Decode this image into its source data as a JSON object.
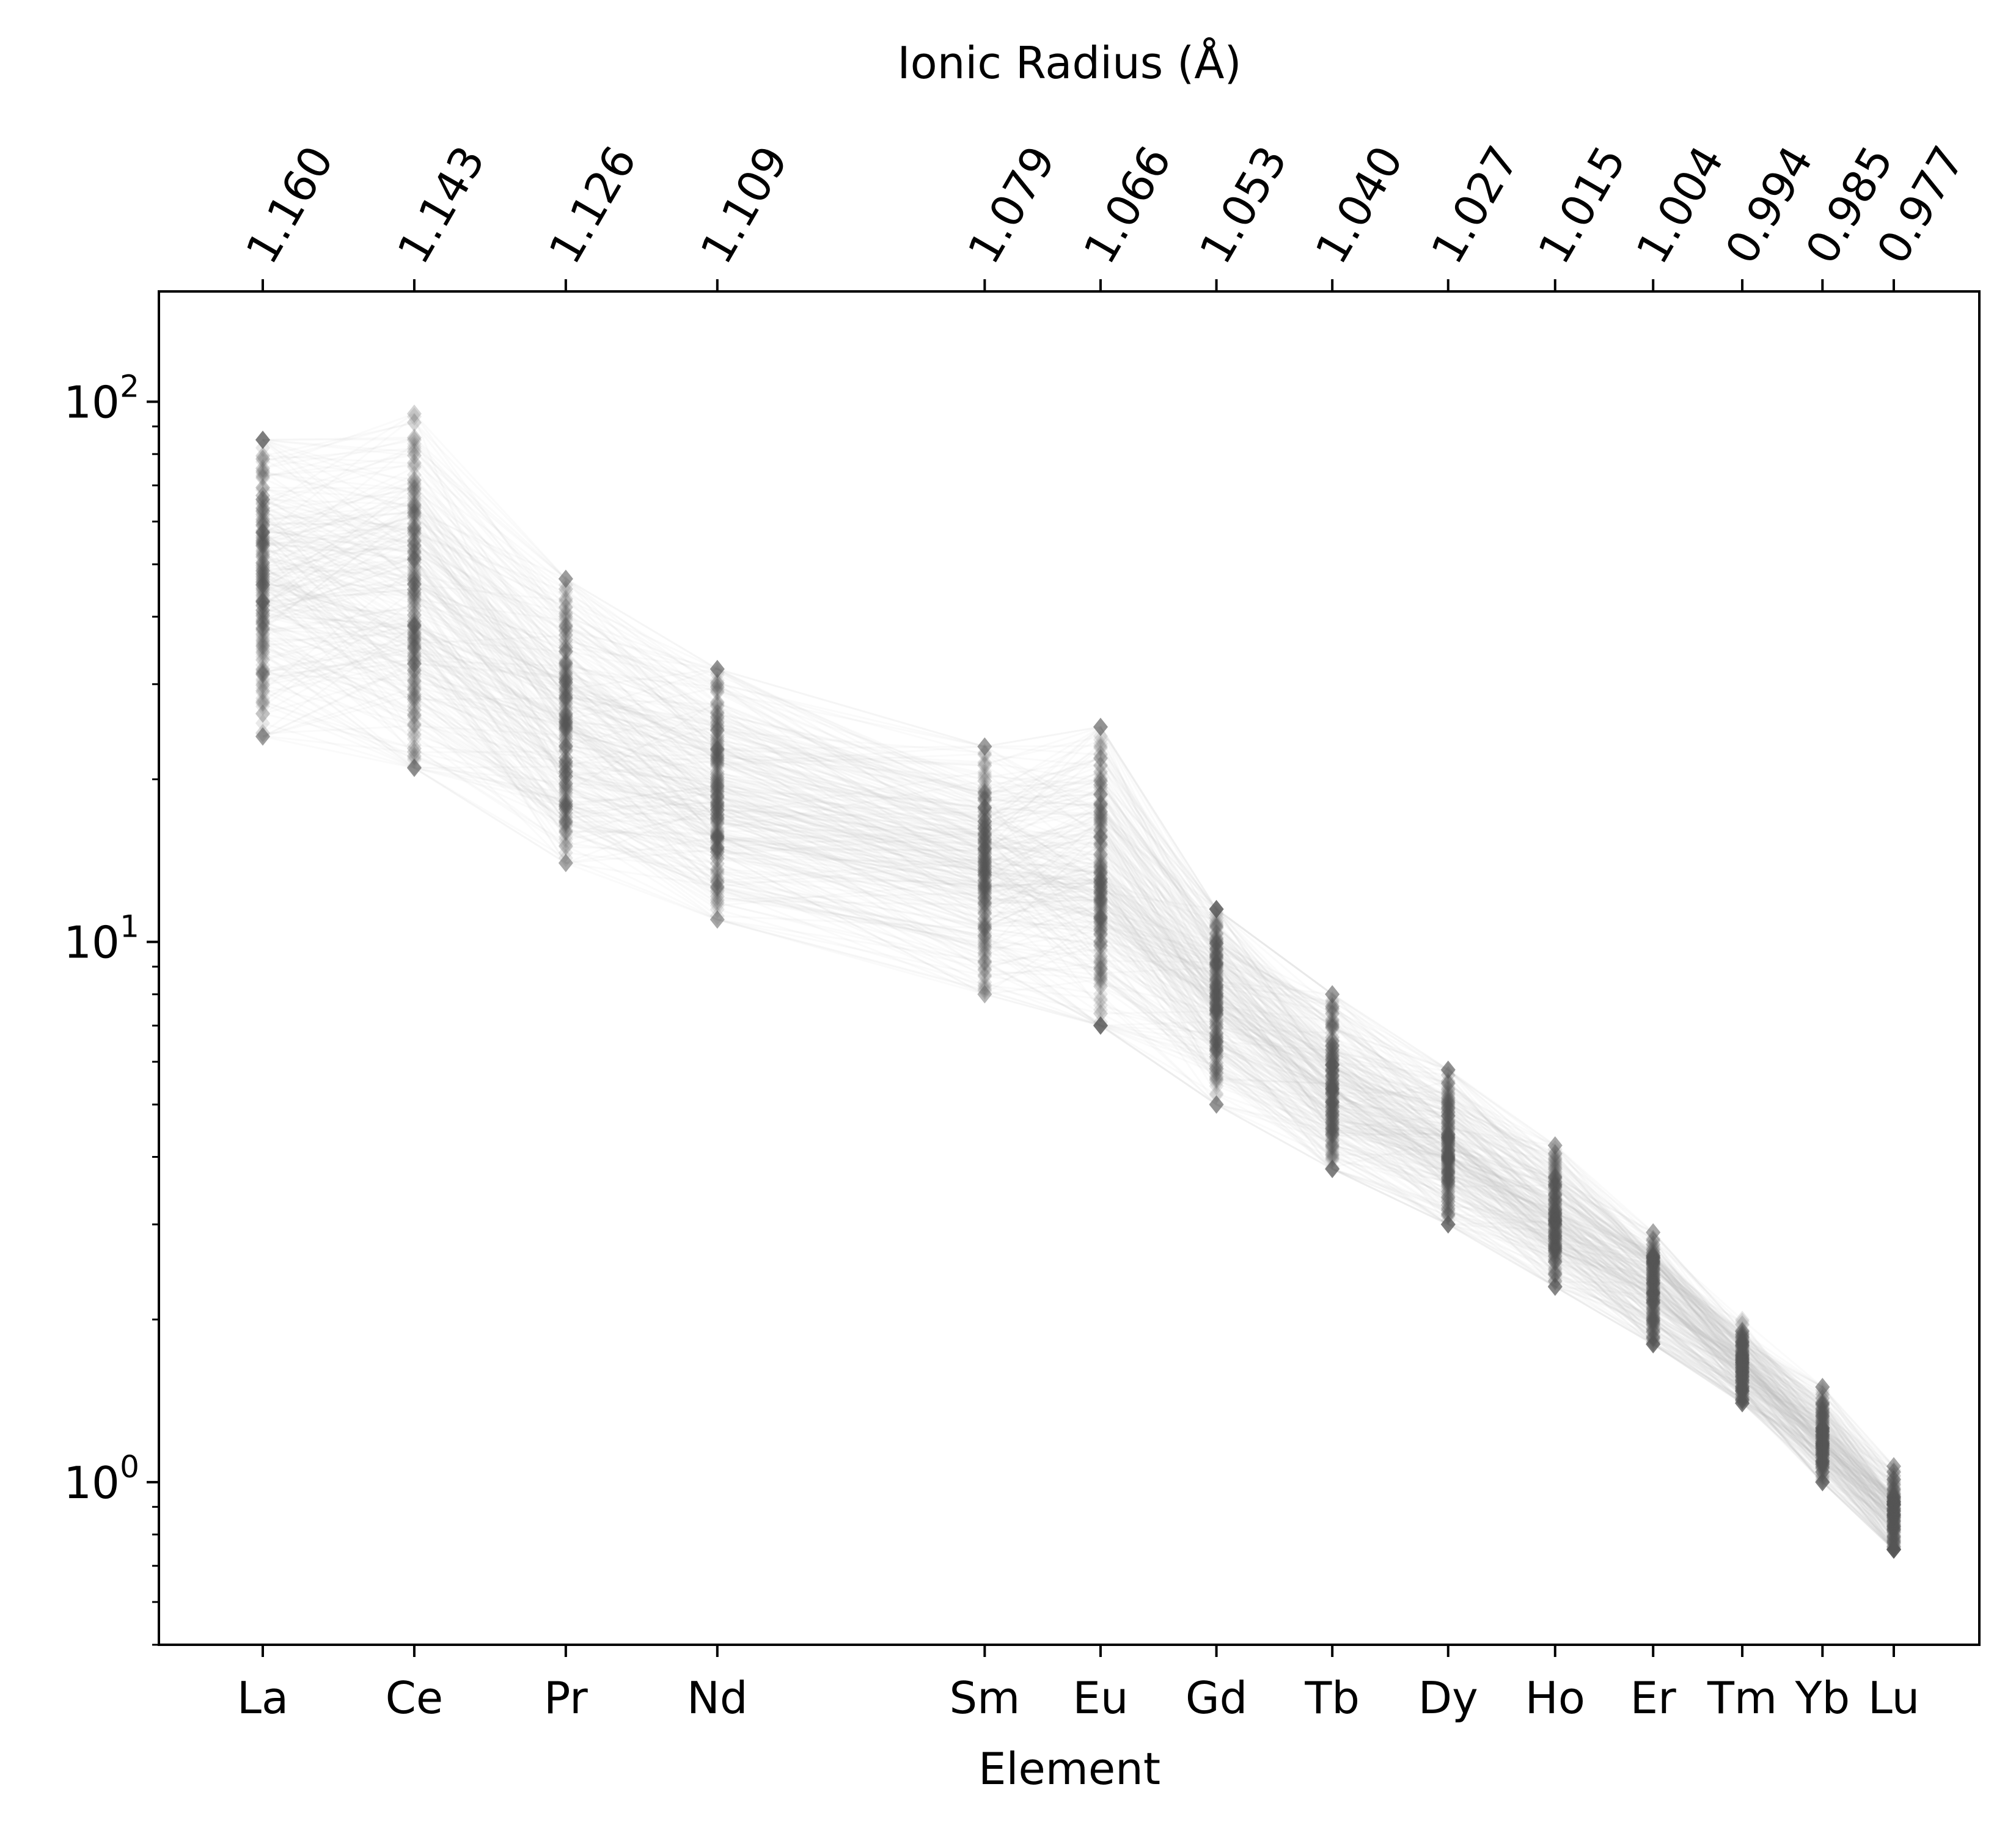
{
  "chart_data": {
    "type": "line",
    "title": "",
    "xlabel": "Element",
    "ylabel": "",
    "top_xlabel": "Ionic Radius (Å)",
    "yscale": "log",
    "ylim": [
      0.5,
      160
    ],
    "categories": [
      "La",
      "Ce",
      "Pr",
      "Nd",
      "Sm",
      "Eu",
      "Gd",
      "Tb",
      "Dy",
      "Ho",
      "Er",
      "Tm",
      "Yb",
      "Lu"
    ],
    "ionic_radius": [
      1.16,
      1.143,
      1.126,
      1.109,
      1.079,
      1.066,
      1.053,
      1.04,
      1.027,
      1.015,
      1.004,
      0.994,
      0.985,
      0.977
    ],
    "ionic_radius_labels": [
      "1.160",
      "1.143",
      "1.126",
      "1.109",
      "1.079",
      "1.066",
      "1.053",
      "1.040",
      "1.027",
      "1.015",
      "1.004",
      "0.994",
      "0.985",
      "0.977"
    ],
    "yticks": [
      {
        "value": 1,
        "base": "10",
        "exp": "0"
      },
      {
        "value": 10,
        "base": "10",
        "exp": "1"
      },
      {
        "value": 100,
        "base": "10",
        "exp": "2"
      }
    ],
    "range_low": [
      24,
      21,
      14,
      11,
      8,
      7,
      5,
      3.8,
      3.0,
      2.3,
      1.8,
      1.4,
      1.0,
      0.75
    ],
    "range_high": [
      85,
      95,
      47,
      32,
      23,
      25,
      11.5,
      8,
      5.8,
      4.2,
      2.9,
      2.0,
      1.5,
      1.07
    ],
    "center": [
      48,
      45,
      26,
      19,
      14,
      13.5,
      8,
      5.5,
      4.2,
      3.1,
      2.3,
      1.65,
      1.2,
      0.88
    ],
    "n_series": 260,
    "colors": {
      "lines": "#b4b4b4",
      "markers": "#555555",
      "frame": "#000000"
    }
  }
}
